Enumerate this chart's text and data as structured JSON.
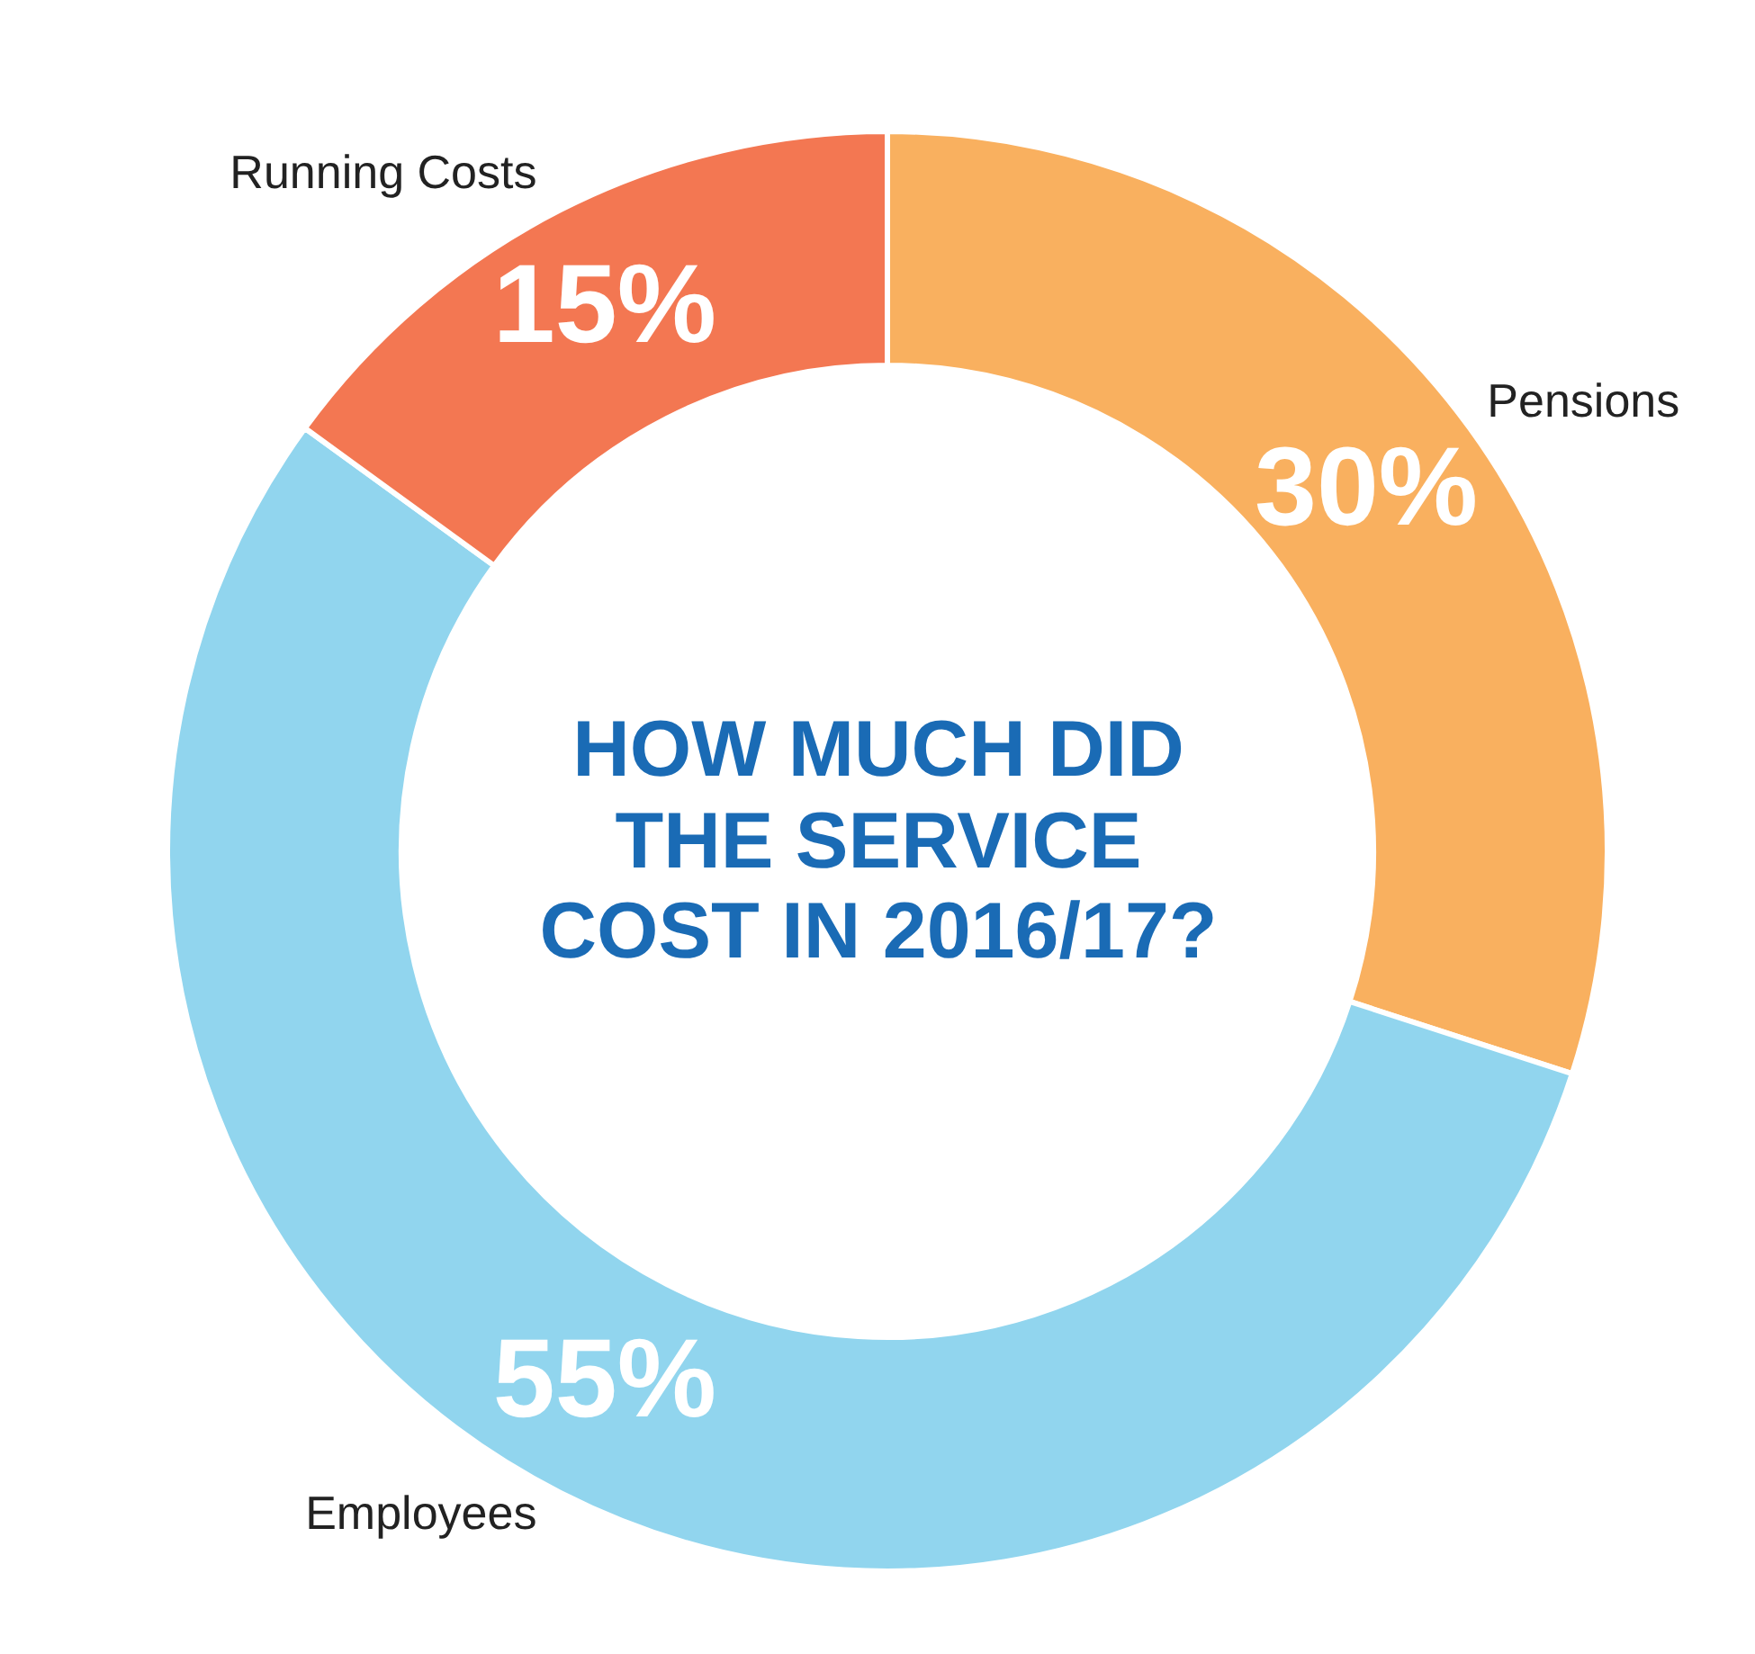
{
  "chart_data": {
    "type": "donut",
    "title": "HOW MUCH DID THE SERVICE COST IN 2016/17?",
    "categories": [
      "Pensions",
      "Employees",
      "Running Costs"
    ],
    "values": [
      30,
      55,
      15
    ],
    "value_labels": [
      "30%",
      "55%",
      "15%"
    ],
    "colors": [
      "#f9b05f",
      "#91d5ee",
      "#f37752"
    ],
    "legend": false
  }
}
